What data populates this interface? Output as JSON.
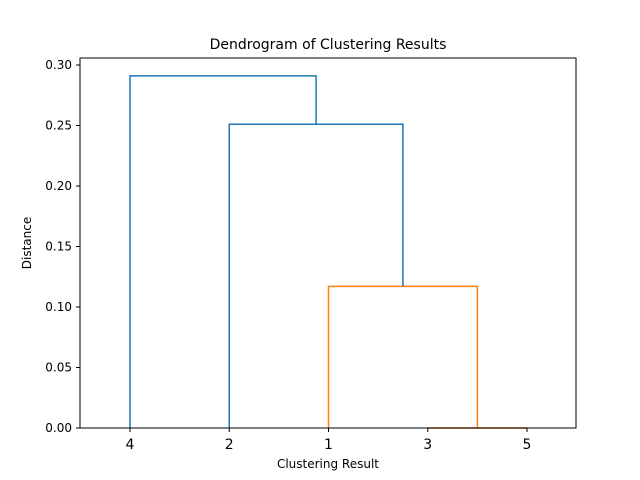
{
  "chart_data": {
    "type": "dendrogram",
    "title": "Dendrogram of Clustering Results",
    "xlabel": "Clustering Result",
    "ylabel": "Distance",
    "leaf_order": [
      "4",
      "2",
      "1",
      "3",
      "5"
    ],
    "ylim": [
      0,
      0.3
    ],
    "yticks": [
      "0.00",
      "0.05",
      "0.10",
      "0.15",
      "0.20",
      "0.25",
      "0.30"
    ],
    "ytick_values": [
      0,
      0.05,
      0.1,
      0.15,
      0.2,
      0.25,
      0.3
    ],
    "grid": false,
    "merges": [
      {
        "left": "3",
        "right": "5",
        "distance": 0.0,
        "color": "#d95f02"
      },
      {
        "left": "1",
        "right": "3+5",
        "distance": 0.117,
        "color": "#ff7f0e"
      },
      {
        "left": "2",
        "right": "1+3+5",
        "distance": 0.251,
        "color": "#1f77b4"
      },
      {
        "left": "4",
        "right": "2+1+3+5",
        "distance": 0.291,
        "color": "#1f77b4"
      }
    ]
  }
}
